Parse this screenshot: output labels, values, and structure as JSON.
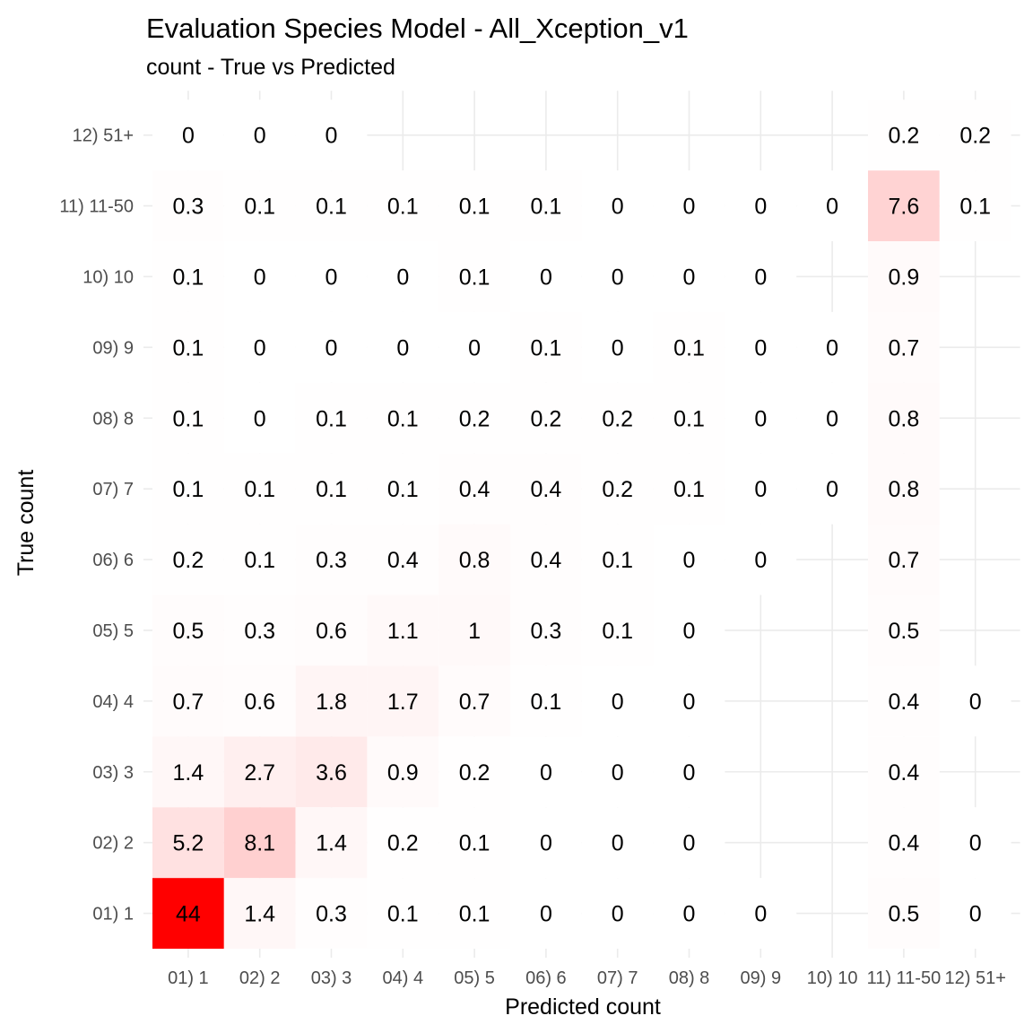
{
  "chart_data": {
    "type": "heatmap",
    "title": "Evaluation Species Model - All_Xception_v1",
    "subtitle": "count - True vs Predicted",
    "xlabel": "Predicted count",
    "ylabel": "True count",
    "grid": true,
    "legend": "none",
    "low_color": "#ffffff",
    "high_color": "#ff0000",
    "value_max": 44,
    "categories": [
      "01) 1",
      "02) 2",
      "03) 3",
      "04) 4",
      "05) 5",
      "06) 6",
      "07) 7",
      "08) 8",
      "09) 9",
      "10) 10",
      "11) 11-50",
      "12) 51+"
    ],
    "cells": [
      {
        "true": "01) 1",
        "predicted": "01) 1",
        "value": 44
      },
      {
        "true": "01) 1",
        "predicted": "02) 2",
        "value": 1.4
      },
      {
        "true": "01) 1",
        "predicted": "03) 3",
        "value": 0.3
      },
      {
        "true": "01) 1",
        "predicted": "04) 4",
        "value": 0.1
      },
      {
        "true": "01) 1",
        "predicted": "05) 5",
        "value": 0.1
      },
      {
        "true": "01) 1",
        "predicted": "06) 6",
        "value": 0
      },
      {
        "true": "01) 1",
        "predicted": "07) 7",
        "value": 0
      },
      {
        "true": "01) 1",
        "predicted": "08) 8",
        "value": 0
      },
      {
        "true": "01) 1",
        "predicted": "09) 9",
        "value": 0
      },
      {
        "true": "01) 1",
        "predicted": "11) 11-50",
        "value": 0.5
      },
      {
        "true": "01) 1",
        "predicted": "12) 51+",
        "value": 0
      },
      {
        "true": "02) 2",
        "predicted": "01) 1",
        "value": 5.2
      },
      {
        "true": "02) 2",
        "predicted": "02) 2",
        "value": 8.1
      },
      {
        "true": "02) 2",
        "predicted": "03) 3",
        "value": 1.4
      },
      {
        "true": "02) 2",
        "predicted": "04) 4",
        "value": 0.2
      },
      {
        "true": "02) 2",
        "predicted": "05) 5",
        "value": 0.1
      },
      {
        "true": "02) 2",
        "predicted": "06) 6",
        "value": 0
      },
      {
        "true": "02) 2",
        "predicted": "07) 7",
        "value": 0
      },
      {
        "true": "02) 2",
        "predicted": "08) 8",
        "value": 0
      },
      {
        "true": "02) 2",
        "predicted": "11) 11-50",
        "value": 0.4
      },
      {
        "true": "02) 2",
        "predicted": "12) 51+",
        "value": 0
      },
      {
        "true": "03) 3",
        "predicted": "01) 1",
        "value": 1.4
      },
      {
        "true": "03) 3",
        "predicted": "02) 2",
        "value": 2.7
      },
      {
        "true": "03) 3",
        "predicted": "03) 3",
        "value": 3.6
      },
      {
        "true": "03) 3",
        "predicted": "04) 4",
        "value": 0.9
      },
      {
        "true": "03) 3",
        "predicted": "05) 5",
        "value": 0.2
      },
      {
        "true": "03) 3",
        "predicted": "06) 6",
        "value": 0
      },
      {
        "true": "03) 3",
        "predicted": "07) 7",
        "value": 0
      },
      {
        "true": "03) 3",
        "predicted": "08) 8",
        "value": 0
      },
      {
        "true": "03) 3",
        "predicted": "11) 11-50",
        "value": 0.4
      },
      {
        "true": "04) 4",
        "predicted": "01) 1",
        "value": 0.7
      },
      {
        "true": "04) 4",
        "predicted": "02) 2",
        "value": 0.6
      },
      {
        "true": "04) 4",
        "predicted": "03) 3",
        "value": 1.8
      },
      {
        "true": "04) 4",
        "predicted": "04) 4",
        "value": 1.7
      },
      {
        "true": "04) 4",
        "predicted": "05) 5",
        "value": 0.7
      },
      {
        "true": "04) 4",
        "predicted": "06) 6",
        "value": 0.1
      },
      {
        "true": "04) 4",
        "predicted": "07) 7",
        "value": 0
      },
      {
        "true": "04) 4",
        "predicted": "08) 8",
        "value": 0
      },
      {
        "true": "04) 4",
        "predicted": "11) 11-50",
        "value": 0.4
      },
      {
        "true": "04) 4",
        "predicted": "12) 51+",
        "value": 0
      },
      {
        "true": "05) 5",
        "predicted": "01) 1",
        "value": 0.5
      },
      {
        "true": "05) 5",
        "predicted": "02) 2",
        "value": 0.3
      },
      {
        "true": "05) 5",
        "predicted": "03) 3",
        "value": 0.6
      },
      {
        "true": "05) 5",
        "predicted": "04) 4",
        "value": 1.1
      },
      {
        "true": "05) 5",
        "predicted": "05) 5",
        "value": 1
      },
      {
        "true": "05) 5",
        "predicted": "06) 6",
        "value": 0.3
      },
      {
        "true": "05) 5",
        "predicted": "07) 7",
        "value": 0.1
      },
      {
        "true": "05) 5",
        "predicted": "08) 8",
        "value": 0
      },
      {
        "true": "05) 5",
        "predicted": "11) 11-50",
        "value": 0.5
      },
      {
        "true": "06) 6",
        "predicted": "01) 1",
        "value": 0.2
      },
      {
        "true": "06) 6",
        "predicted": "02) 2",
        "value": 0.1
      },
      {
        "true": "06) 6",
        "predicted": "03) 3",
        "value": 0.3
      },
      {
        "true": "06) 6",
        "predicted": "04) 4",
        "value": 0.4
      },
      {
        "true": "06) 6",
        "predicted": "05) 5",
        "value": 0.8
      },
      {
        "true": "06) 6",
        "predicted": "06) 6",
        "value": 0.4
      },
      {
        "true": "06) 6",
        "predicted": "07) 7",
        "value": 0.1
      },
      {
        "true": "06) 6",
        "predicted": "08) 8",
        "value": 0
      },
      {
        "true": "06) 6",
        "predicted": "09) 9",
        "value": 0
      },
      {
        "true": "06) 6",
        "predicted": "11) 11-50",
        "value": 0.7
      },
      {
        "true": "07) 7",
        "predicted": "01) 1",
        "value": 0.1
      },
      {
        "true": "07) 7",
        "predicted": "02) 2",
        "value": 0.1
      },
      {
        "true": "07) 7",
        "predicted": "03) 3",
        "value": 0.1
      },
      {
        "true": "07) 7",
        "predicted": "04) 4",
        "value": 0.1
      },
      {
        "true": "07) 7",
        "predicted": "05) 5",
        "value": 0.4
      },
      {
        "true": "07) 7",
        "predicted": "06) 6",
        "value": 0.4
      },
      {
        "true": "07) 7",
        "predicted": "07) 7",
        "value": 0.2
      },
      {
        "true": "07) 7",
        "predicted": "08) 8",
        "value": 0.1
      },
      {
        "true": "07) 7",
        "predicted": "09) 9",
        "value": 0
      },
      {
        "true": "07) 7",
        "predicted": "10) 10",
        "value": 0
      },
      {
        "true": "07) 7",
        "predicted": "11) 11-50",
        "value": 0.8
      },
      {
        "true": "08) 8",
        "predicted": "01) 1",
        "value": 0.1
      },
      {
        "true": "08) 8",
        "predicted": "02) 2",
        "value": 0
      },
      {
        "true": "08) 8",
        "predicted": "03) 3",
        "value": 0.1
      },
      {
        "true": "08) 8",
        "predicted": "04) 4",
        "value": 0.1
      },
      {
        "true": "08) 8",
        "predicted": "05) 5",
        "value": 0.2
      },
      {
        "true": "08) 8",
        "predicted": "06) 6",
        "value": 0.2
      },
      {
        "true": "08) 8",
        "predicted": "07) 7",
        "value": 0.2
      },
      {
        "true": "08) 8",
        "predicted": "08) 8",
        "value": 0.1
      },
      {
        "true": "08) 8",
        "predicted": "09) 9",
        "value": 0
      },
      {
        "true": "08) 8",
        "predicted": "10) 10",
        "value": 0
      },
      {
        "true": "08) 8",
        "predicted": "11) 11-50",
        "value": 0.8
      },
      {
        "true": "09) 9",
        "predicted": "01) 1",
        "value": 0.1
      },
      {
        "true": "09) 9",
        "predicted": "02) 2",
        "value": 0
      },
      {
        "true": "09) 9",
        "predicted": "03) 3",
        "value": 0
      },
      {
        "true": "09) 9",
        "predicted": "04) 4",
        "value": 0
      },
      {
        "true": "09) 9",
        "predicted": "05) 5",
        "value": 0
      },
      {
        "true": "09) 9",
        "predicted": "06) 6",
        "value": 0.1
      },
      {
        "true": "09) 9",
        "predicted": "07) 7",
        "value": 0
      },
      {
        "true": "09) 9",
        "predicted": "08) 8",
        "value": 0.1
      },
      {
        "true": "09) 9",
        "predicted": "09) 9",
        "value": 0
      },
      {
        "true": "09) 9",
        "predicted": "10) 10",
        "value": 0
      },
      {
        "true": "09) 9",
        "predicted": "11) 11-50",
        "value": 0.7
      },
      {
        "true": "10) 10",
        "predicted": "01) 1",
        "value": 0.1
      },
      {
        "true": "10) 10",
        "predicted": "02) 2",
        "value": 0
      },
      {
        "true": "10) 10",
        "predicted": "03) 3",
        "value": 0
      },
      {
        "true": "10) 10",
        "predicted": "04) 4",
        "value": 0
      },
      {
        "true": "10) 10",
        "predicted": "05) 5",
        "value": 0.1
      },
      {
        "true": "10) 10",
        "predicted": "06) 6",
        "value": 0
      },
      {
        "true": "10) 10",
        "predicted": "07) 7",
        "value": 0
      },
      {
        "true": "10) 10",
        "predicted": "08) 8",
        "value": 0
      },
      {
        "true": "10) 10",
        "predicted": "09) 9",
        "value": 0
      },
      {
        "true": "10) 10",
        "predicted": "11) 11-50",
        "value": 0.9
      },
      {
        "true": "11) 11-50",
        "predicted": "01) 1",
        "value": 0.3
      },
      {
        "true": "11) 11-50",
        "predicted": "02) 2",
        "value": 0.1
      },
      {
        "true": "11) 11-50",
        "predicted": "03) 3",
        "value": 0.1
      },
      {
        "true": "11) 11-50",
        "predicted": "04) 4",
        "value": 0.1
      },
      {
        "true": "11) 11-50",
        "predicted": "05) 5",
        "value": 0.1
      },
      {
        "true": "11) 11-50",
        "predicted": "06) 6",
        "value": 0.1
      },
      {
        "true": "11) 11-50",
        "predicted": "07) 7",
        "value": 0
      },
      {
        "true": "11) 11-50",
        "predicted": "08) 8",
        "value": 0
      },
      {
        "true": "11) 11-50",
        "predicted": "09) 9",
        "value": 0
      },
      {
        "true": "11) 11-50",
        "predicted": "10) 10",
        "value": 0
      },
      {
        "true": "11) 11-50",
        "predicted": "11) 11-50",
        "value": 7.6
      },
      {
        "true": "11) 11-50",
        "predicted": "12) 51+",
        "value": 0.1
      },
      {
        "true": "12) 51+",
        "predicted": "01) 1",
        "value": 0
      },
      {
        "true": "12) 51+",
        "predicted": "02) 2",
        "value": 0
      },
      {
        "true": "12) 51+",
        "predicted": "03) 3",
        "value": 0
      },
      {
        "true": "12) 51+",
        "predicted": "11) 11-50",
        "value": 0.2
      },
      {
        "true": "12) 51+",
        "predicted": "12) 51+",
        "value": 0.2
      }
    ]
  }
}
